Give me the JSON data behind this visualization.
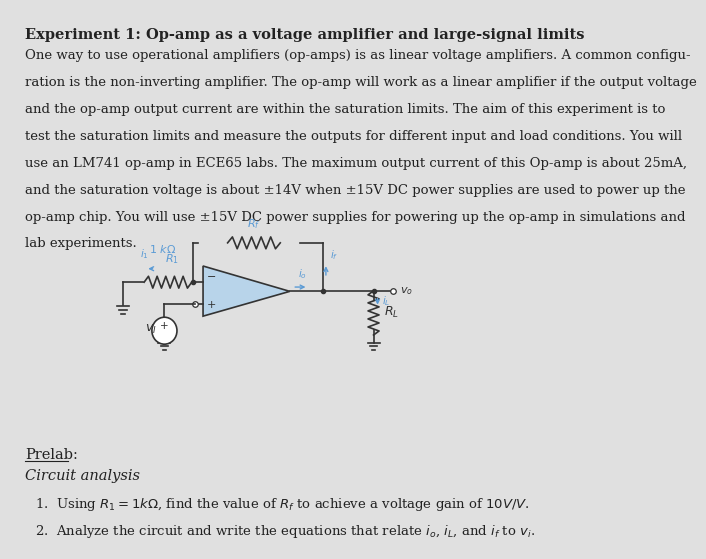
{
  "title": "Experiment 1: Op-amp as a voltage amplifier and large-signal limits",
  "body_lines": [
    "One way to use operational amplifiers (op-amps) is as linear voltage amplifiers. A common configu-",
    "ration is the non-inverting amplifier. The op-amp will work as a linear amplifier if the output voltage",
    "and the op-amp output current are within the saturation limits. The aim of this experiment is to",
    "test the saturation limits and measure the outputs for different input and load conditions. You will",
    "use an LM741 op-amp in ECE65 labs. The maximum output current of this Op-amp is about 25mA,",
    "and the saturation voltage is about ±14V when ±15V DC power supplies are used to power up the",
    "op-amp chip. You will use ±15V DC power supplies for powering up the op-amp in simulations and",
    "lab experiments."
  ],
  "prelab_label": "Prelab:",
  "circuit_analysis_label": "Circuit analysis",
  "item1": "1.  Using $R_1 = 1k\\Omega$, find the value of $R_f$ to achieve a voltage gain of $10V/V$.",
  "item2": "2.  Analyze the circuit and write the equations that relate $i_o$, $i_L$, and $i_f$ to $v_i$.",
  "bg_color": "#e0e0e0",
  "text_color": "#222222",
  "title_fontsize": 10.5,
  "body_fontsize": 9.5,
  "label_fontsize": 10.5,
  "circuit_color": "#5b9bd5",
  "circuit_line_color": "#333333"
}
